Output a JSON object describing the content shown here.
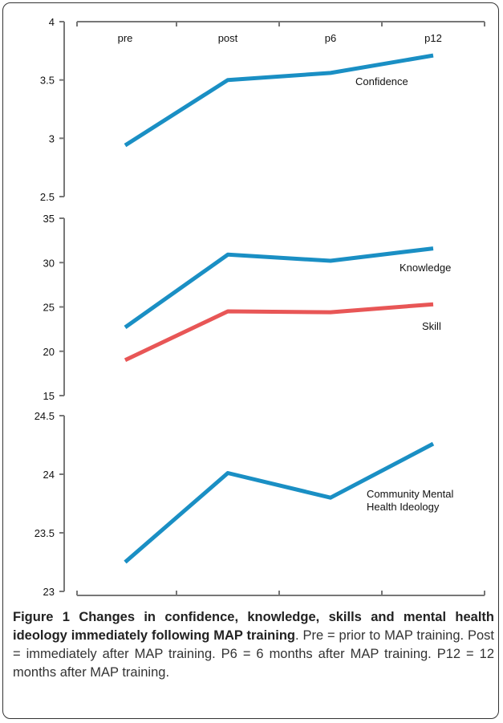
{
  "chart_data": [
    {
      "type": "line",
      "categories": [
        "pre",
        "post",
        "p6",
        "p12"
      ],
      "ylim": [
        2.5,
        4
      ],
      "yticks": [
        "4",
        "3.5",
        "3",
        "2.5"
      ],
      "tick_values": [
        4,
        3.5,
        3,
        2.5
      ],
      "category_labels_position": "top",
      "series": [
        {
          "name": "Confidence",
          "values": [
            2.94,
            3.5,
            3.56,
            3.71
          ],
          "color": "#1a8fc4"
        }
      ]
    },
    {
      "type": "line",
      "categories": [
        "pre",
        "post",
        "p6",
        "p12"
      ],
      "ylim": [
        15,
        35
      ],
      "yticks": [
        "35",
        "30",
        "25",
        "20",
        "15"
      ],
      "tick_values": [
        35,
        30,
        25,
        20,
        15
      ],
      "series": [
        {
          "name": "Knowledge",
          "values": [
            22.7,
            30.9,
            30.2,
            31.6
          ],
          "color": "#1a8fc4"
        },
        {
          "name": "Skill",
          "values": [
            19.0,
            24.5,
            24.4,
            25.3
          ],
          "color": "#e85656"
        }
      ]
    },
    {
      "type": "line",
      "categories": [
        "pre",
        "post",
        "p6",
        "p12"
      ],
      "ylim": [
        23,
        24.5
      ],
      "yticks": [
        "24.5",
        "24",
        "23.5",
        "23"
      ],
      "tick_values": [
        24.5,
        24,
        23.5,
        23
      ],
      "category_labels_position": "bottom",
      "series": [
        {
          "name": "Community Mental Health Ideology",
          "name_lines": [
            "Community Mental",
            "Health Ideology"
          ],
          "values": [
            23.25,
            24.01,
            23.8,
            24.26
          ],
          "color": "#1a8fc4"
        }
      ]
    }
  ],
  "caption": {
    "figure_label": "Figure 1",
    "title": "Changes in confidence, knowledge, skills and mental health ideology immediately following MAP training",
    "body": ". Pre = prior to MAP training. Post = immediately after MAP training. P6 = 6 months after MAP training. P12 = 12 months after MAP training."
  }
}
